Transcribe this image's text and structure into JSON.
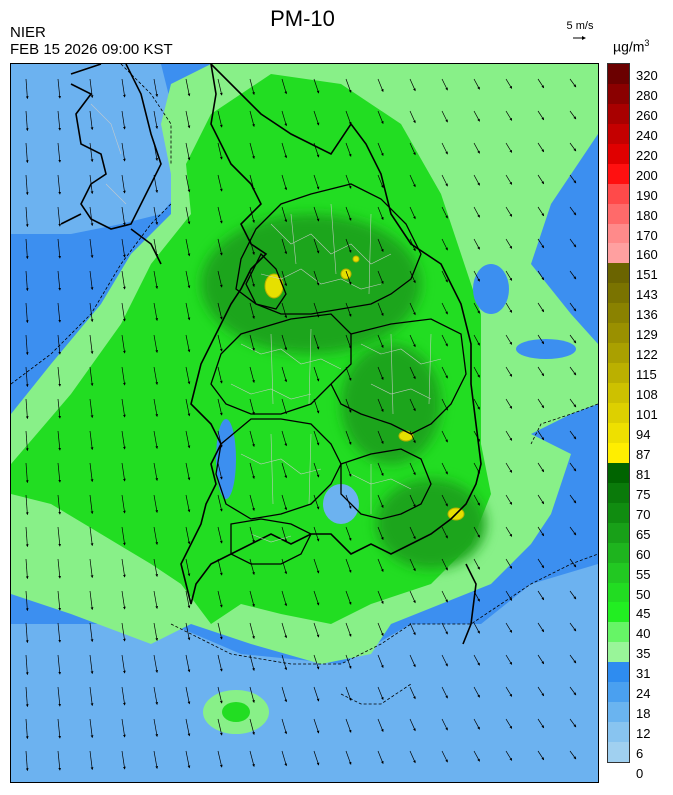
{
  "header": {
    "org": "NIER",
    "datetime": "FEB 15 2026 09:00 KST",
    "title": "PM-10"
  },
  "wind_reference": {
    "label": "5 m/s"
  },
  "legend": {
    "unit_text": "µg/m",
    "unit_sup": "3",
    "labels": [
      "320",
      "280",
      "260",
      "240",
      "220",
      "200",
      "190",
      "180",
      "170",
      "160",
      "151",
      "143",
      "136",
      "129",
      "122",
      "115",
      "108",
      "101",
      "94",
      "87",
      "81",
      "75",
      "70",
      "65",
      "60",
      "55",
      "50",
      "45",
      "40",
      "35",
      "31",
      "24",
      "18",
      "12",
      "6",
      "0"
    ],
    "colors": [
      "#6b0000",
      "#8a0000",
      "#a80000",
      "#c40000",
      "#e00000",
      "#ff1010",
      "#ff4a4a",
      "#ff6a6a",
      "#ff8a8a",
      "#ffa0a0",
      "#6b6400",
      "#7a7300",
      "#8a8200",
      "#9a9000",
      "#aaa000",
      "#bbb000",
      "#cdc100",
      "#ddd000",
      "#eee000",
      "#ffee00",
      "#006400",
      "#0a7a0a",
      "#108c10",
      "#18a018",
      "#1eb41e",
      "#22c822",
      "#22dc22",
      "#22ee22",
      "#66f566",
      "#99f599",
      "#2e8cf0",
      "#4aa0f0",
      "#6ab4f0",
      "#88c4f0",
      "#a0d0f0"
    ]
  },
  "map": {
    "colors": {
      "sea": "#3c8ff0",
      "sea_light": "#6cb2f0",
      "land": "#22dd22",
      "land_dark": "#1aa51a",
      "band": "#88f088",
      "hotspot": "#e6e000",
      "hotspot_dark": "#b5b000"
    }
  }
}
